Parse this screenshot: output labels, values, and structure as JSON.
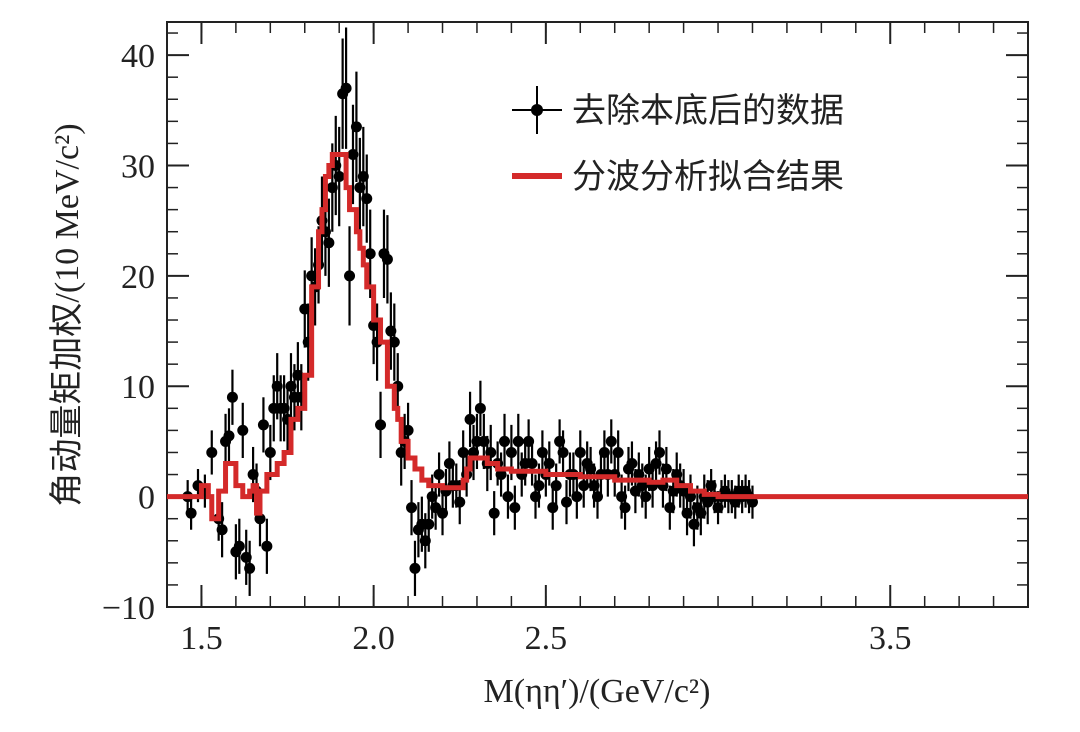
{
  "chart_data": {
    "type": "scatter",
    "xlabel": "M(ηη′)/(GeV/c²)",
    "ylabel": "角动量矩加权/(10 MeV/c²)",
    "xlim": [
      1.4,
      3.9
    ],
    "ylim": [
      -10,
      43
    ],
    "x_ticks": [
      1.5,
      2.0,
      2.5,
      3.5
    ],
    "x_tick_labels": [
      "1.5",
      "2.0",
      "2.5",
      "3.5"
    ],
    "y_ticks": [
      -10,
      0,
      10,
      20,
      30,
      40
    ],
    "y_tick_labels": [
      "−10",
      "0",
      "10",
      "20",
      "30",
      "40"
    ],
    "grid": false,
    "legend_position": "top-right",
    "series": [
      {
        "name": "去除本底后的数据",
        "kind": "points-with-errorbars",
        "color": "#000000",
        "points": [
          [
            1.46,
            0,
            1.5
          ],
          [
            1.47,
            -1.5,
            1.5
          ],
          [
            1.49,
            1,
            1.5
          ],
          [
            1.51,
            0.5,
            1.5
          ],
          [
            1.53,
            4,
            2
          ],
          [
            1.55,
            -2,
            2
          ],
          [
            1.56,
            -3,
            2.5
          ],
          [
            1.57,
            5,
            2.5
          ],
          [
            1.58,
            5.5,
            2.5
          ],
          [
            1.59,
            9,
            2.5
          ],
          [
            1.6,
            -5,
            2.5
          ],
          [
            1.61,
            -4.5,
            2.5
          ],
          [
            1.62,
            6,
            2.5
          ],
          [
            1.63,
            -5.5,
            2.5
          ],
          [
            1.64,
            -6.5,
            2.5
          ],
          [
            1.65,
            2,
            2.5
          ],
          [
            1.66,
            0.5,
            2.5
          ],
          [
            1.67,
            -2,
            2.5
          ],
          [
            1.68,
            6.5,
            2.5
          ],
          [
            1.69,
            -4.5,
            2.5
          ],
          [
            1.7,
            4,
            2.5
          ],
          [
            1.71,
            8,
            3
          ],
          [
            1.72,
            10,
            3
          ],
          [
            1.73,
            8,
            3
          ],
          [
            1.74,
            8,
            3
          ],
          [
            1.75,
            7,
            3
          ],
          [
            1.76,
            10,
            3
          ],
          [
            1.77,
            9,
            3
          ],
          [
            1.78,
            11,
            3
          ],
          [
            1.79,
            9,
            3
          ],
          [
            1.8,
            17,
            3.5
          ],
          [
            1.81,
            14,
            3.5
          ],
          [
            1.82,
            20,
            3.5
          ],
          [
            1.83,
            19,
            3.5
          ],
          [
            1.84,
            21,
            3.5
          ],
          [
            1.85,
            25,
            4
          ],
          [
            1.86,
            24,
            4
          ],
          [
            1.87,
            23,
            4
          ],
          [
            1.88,
            28,
            4
          ],
          [
            1.89,
            30,
            4.5
          ],
          [
            1.9,
            29,
            4.5
          ],
          [
            1.91,
            36.5,
            5
          ],
          [
            1.92,
            37,
            5.5
          ],
          [
            1.93,
            20,
            4.5
          ],
          [
            1.94,
            31,
            4.5
          ],
          [
            1.95,
            33.5,
            5
          ],
          [
            1.96,
            28,
            4.5
          ],
          [
            1.97,
            29,
            4.5
          ],
          [
            1.98,
            27,
            4
          ],
          [
            1.99,
            22,
            4
          ],
          [
            2.0,
            15.5,
            3.5
          ],
          [
            2.01,
            14,
            3.5
          ],
          [
            2.02,
            6.5,
            3
          ],
          [
            2.03,
            22,
            4
          ],
          [
            2.04,
            21.5,
            4
          ],
          [
            2.05,
            15,
            3.5
          ],
          [
            2.06,
            14,
            3.5
          ],
          [
            2.07,
            10,
            3
          ],
          [
            2.08,
            4,
            3
          ],
          [
            2.09,
            5,
            2.5
          ],
          [
            2.1,
            6,
            2.5
          ],
          [
            2.11,
            -1,
            2.5
          ],
          [
            2.12,
            -6.5,
            2.5
          ],
          [
            2.13,
            -3,
            2.5
          ],
          [
            2.14,
            -2.5,
            2.5
          ],
          [
            2.15,
            -4,
            2.5
          ],
          [
            2.16,
            -2.5,
            2.5
          ],
          [
            2.17,
            0,
            2
          ],
          [
            2.18,
            -1,
            2
          ],
          [
            2.19,
            2,
            2
          ],
          [
            2.2,
            -1.5,
            2
          ],
          [
            2.21,
            0.5,
            2
          ],
          [
            2.22,
            3,
            2
          ],
          [
            2.23,
            1,
            2
          ],
          [
            2.24,
            1,
            2
          ],
          [
            2.25,
            -0.5,
            2
          ],
          [
            2.26,
            4,
            2
          ],
          [
            2.27,
            2,
            2
          ],
          [
            2.28,
            7,
            2.5
          ],
          [
            2.29,
            4,
            2.5
          ],
          [
            2.3,
            5,
            2.5
          ],
          [
            2.31,
            8,
            2.5
          ],
          [
            2.32,
            5,
            2.5
          ],
          [
            2.33,
            3,
            2.5
          ],
          [
            2.34,
            4,
            2.5
          ],
          [
            2.35,
            -1.5,
            2
          ],
          [
            2.36,
            3,
            2
          ],
          [
            2.37,
            2,
            2
          ],
          [
            2.38,
            5,
            2.5
          ],
          [
            2.39,
            0,
            2
          ],
          [
            2.4,
            4,
            2.5
          ],
          [
            2.41,
            -1,
            2
          ],
          [
            2.42,
            5,
            2.5
          ],
          [
            2.43,
            2,
            2
          ],
          [
            2.44,
            3,
            2
          ],
          [
            2.45,
            5,
            2
          ],
          [
            2.46,
            3,
            2
          ],
          [
            2.47,
            0,
            2
          ],
          [
            2.48,
            1,
            2
          ],
          [
            2.49,
            4,
            2
          ],
          [
            2.5,
            2,
            2
          ],
          [
            2.51,
            3,
            2
          ],
          [
            2.52,
            -1,
            2
          ],
          [
            2.53,
            1,
            2
          ],
          [
            2.54,
            5,
            2
          ],
          [
            2.55,
            4,
            2
          ],
          [
            2.56,
            -0.5,
            2
          ],
          [
            2.57,
            2,
            2
          ],
          [
            2.58,
            2,
            2
          ],
          [
            2.59,
            0,
            2
          ],
          [
            2.6,
            4,
            2
          ],
          [
            2.61,
            1,
            2
          ],
          [
            2.62,
            3,
            2
          ],
          [
            2.63,
            2.5,
            2
          ],
          [
            2.64,
            1,
            2
          ],
          [
            2.65,
            0,
            2
          ],
          [
            2.66,
            2,
            2
          ],
          [
            2.67,
            4,
            2
          ],
          [
            2.68,
            2,
            2
          ],
          [
            2.69,
            5,
            2
          ],
          [
            2.7,
            2,
            2
          ],
          [
            2.71,
            4,
            2
          ],
          [
            2.72,
            0,
            2
          ],
          [
            2.73,
            -1,
            2
          ],
          [
            2.74,
            2.5,
            2
          ],
          [
            2.75,
            3,
            2
          ],
          [
            2.76,
            0.5,
            2
          ],
          [
            2.77,
            2,
            2
          ],
          [
            2.78,
            1,
            2
          ],
          [
            2.79,
            0,
            2
          ],
          [
            2.8,
            2.5,
            2
          ],
          [
            2.81,
            1,
            2
          ],
          [
            2.82,
            3,
            2
          ],
          [
            2.83,
            4,
            2
          ],
          [
            2.84,
            1,
            2
          ],
          [
            2.85,
            2.5,
            2
          ],
          [
            2.86,
            -1,
            2
          ],
          [
            2.87,
            0.5,
            2
          ],
          [
            2.88,
            2,
            2
          ],
          [
            2.89,
            1,
            2
          ],
          [
            2.9,
            0.5,
            2
          ],
          [
            2.91,
            -1.5,
            2
          ],
          [
            2.92,
            0,
            2
          ],
          [
            2.93,
            -2.5,
            2
          ],
          [
            2.94,
            -1,
            2
          ],
          [
            2.95,
            -1.5,
            2
          ],
          [
            2.96,
            0,
            2
          ],
          [
            2.97,
            -0.5,
            2
          ],
          [
            2.98,
            1,
            1.5
          ],
          [
            2.99,
            0,
            1.5
          ],
          [
            3.0,
            -1,
            1.5
          ],
          [
            3.01,
            0,
            1.5
          ],
          [
            3.02,
            0.5,
            1.5
          ],
          [
            3.03,
            0,
            1.5
          ],
          [
            3.04,
            0,
            1.5
          ],
          [
            3.05,
            -0.5,
            1.5
          ],
          [
            3.06,
            0.5,
            1.5
          ],
          [
            3.07,
            0,
            1.5
          ],
          [
            3.08,
            0.5,
            1.5
          ],
          [
            3.09,
            0,
            1.5
          ],
          [
            3.1,
            -0.5,
            1.5
          ]
        ]
      },
      {
        "name": "分波分析拟合结果",
        "kind": "step-line",
        "color": "#d42a2a",
        "points": [
          [
            1.4,
            0
          ],
          [
            1.47,
            0
          ],
          [
            1.5,
            1
          ],
          [
            1.52,
            0
          ],
          [
            1.53,
            -2
          ],
          [
            1.55,
            0.5
          ],
          [
            1.57,
            3
          ],
          [
            1.6,
            1
          ],
          [
            1.62,
            0
          ],
          [
            1.64,
            0.5
          ],
          [
            1.65,
            1
          ],
          [
            1.66,
            -1.5
          ],
          [
            1.67,
            0.5
          ],
          [
            1.69,
            2
          ],
          [
            1.72,
            3
          ],
          [
            1.74,
            4
          ],
          [
            1.76,
            7
          ],
          [
            1.78,
            8
          ],
          [
            1.8,
            11
          ],
          [
            1.82,
            19
          ],
          [
            1.84,
            24
          ],
          [
            1.85,
            26
          ],
          [
            1.86,
            29
          ],
          [
            1.87,
            30
          ],
          [
            1.88,
            31
          ],
          [
            1.9,
            31
          ],
          [
            1.92,
            28
          ],
          [
            1.93,
            26
          ],
          [
            1.95,
            24
          ],
          [
            1.96,
            22.5
          ],
          [
            1.97,
            21
          ],
          [
            1.98,
            19
          ],
          [
            2.0,
            16
          ],
          [
            2.02,
            14
          ],
          [
            2.04,
            10
          ],
          [
            2.06,
            8
          ],
          [
            2.07,
            7
          ],
          [
            2.08,
            5
          ],
          [
            2.1,
            3.5
          ],
          [
            2.12,
            2.5
          ],
          [
            2.14,
            1.5
          ],
          [
            2.16,
            1
          ],
          [
            2.2,
            0.8
          ],
          [
            2.24,
            0.8
          ],
          [
            2.26,
            1.5
          ],
          [
            2.27,
            2.5
          ],
          [
            2.28,
            3.5
          ],
          [
            2.3,
            3.5
          ],
          [
            2.33,
            3
          ],
          [
            2.36,
            2.5
          ],
          [
            2.4,
            2.3
          ],
          [
            2.5,
            2
          ],
          [
            2.6,
            1.8
          ],
          [
            2.7,
            1.5
          ],
          [
            2.8,
            1.3
          ],
          [
            2.84,
            1.5
          ],
          [
            2.88,
            1
          ],
          [
            2.92,
            0.5
          ],
          [
            2.96,
            0.2
          ],
          [
            3.0,
            0
          ],
          [
            3.5,
            0
          ],
          [
            3.9,
            0
          ]
        ]
      }
    ]
  }
}
